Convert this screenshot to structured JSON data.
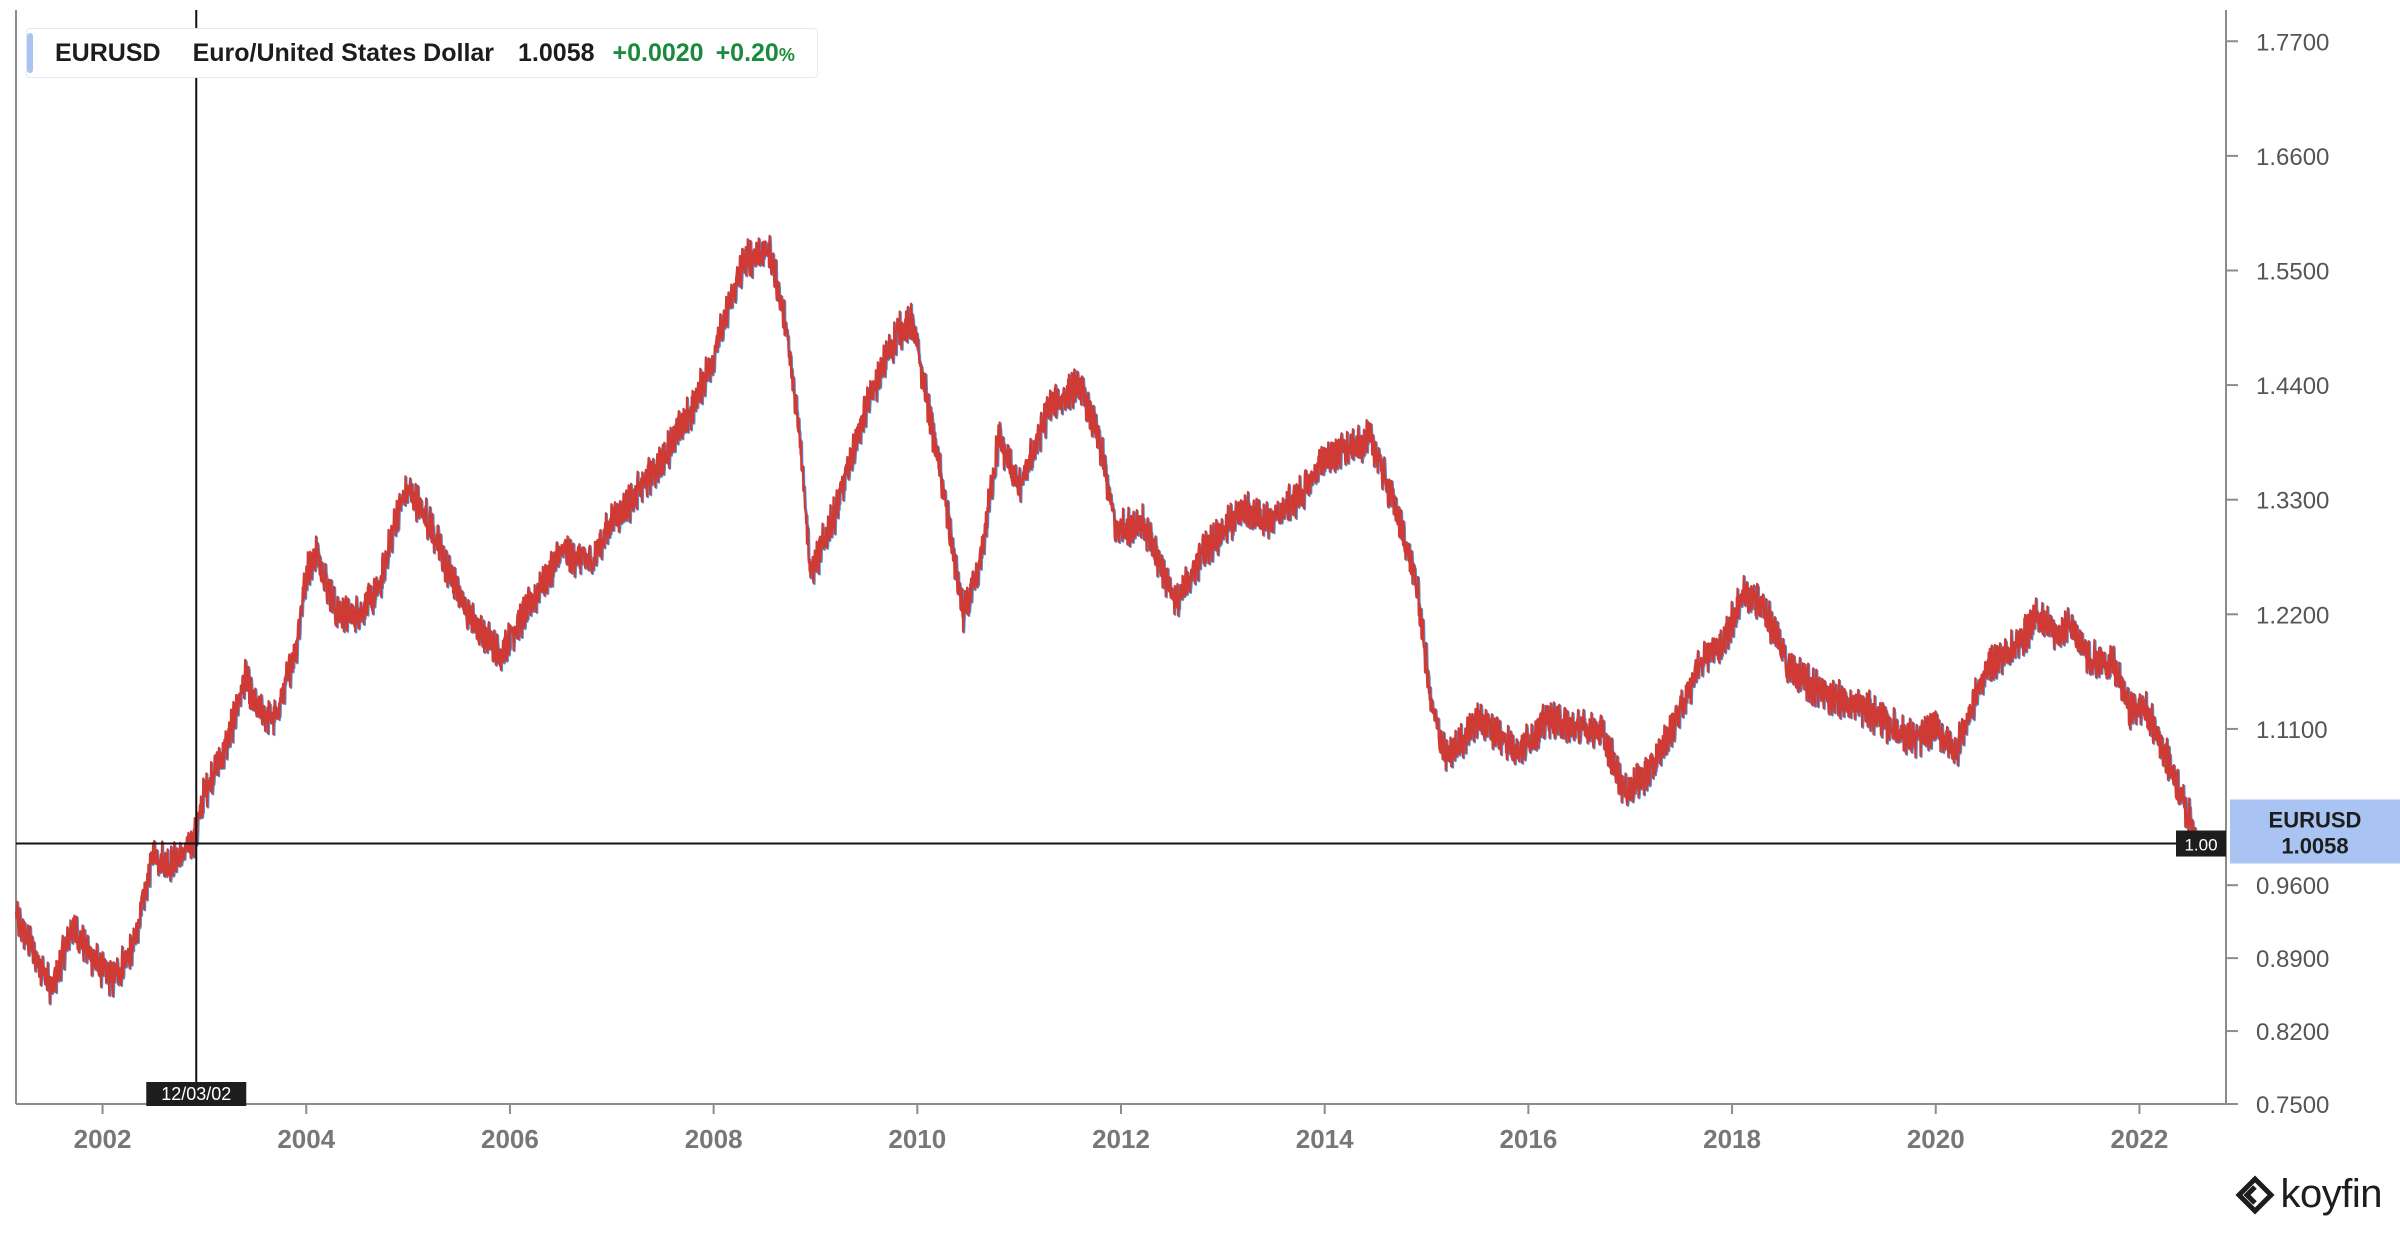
{
  "legend": {
    "symbol": "EURUSD",
    "name": "Euro/United States Dollar",
    "last": "1.0058",
    "change": "+0.0020",
    "change_pct": "+0.20",
    "pct_unit": "%"
  },
  "price_tag": {
    "symbol": "EURUSD",
    "value": "1.0058"
  },
  "crosshair": {
    "x_label": "12/03/02",
    "y_label": "1.00",
    "x_date": 2002.92,
    "y_value": 1.0
  },
  "brand": {
    "name": "koyfin"
  },
  "colors": {
    "line": "#d03a35",
    "line_highlight": "#4f8fd6",
    "tag_bg": "#a9c4f2",
    "positive": "#1a8a3c"
  },
  "chart_data": {
    "type": "line",
    "title": "",
    "xlabel": "",
    "ylabel": "",
    "xlim": [
      2001.15,
      2022.85
    ],
    "ylim": [
      0.75,
      1.8
    ],
    "x_ticks": [
      2002,
      2004,
      2006,
      2008,
      2010,
      2012,
      2014,
      2016,
      2018,
      2020,
      2022
    ],
    "x_tick_labels": [
      "2002",
      "2004",
      "2006",
      "2008",
      "2010",
      "2012",
      "2014",
      "2016",
      "2018",
      "2020",
      "2022"
    ],
    "y_ticks": [
      0.75,
      0.82,
      0.89,
      0.96,
      1.11,
      1.22,
      1.33,
      1.44,
      1.55,
      1.66,
      1.77
    ],
    "y_tick_labels": [
      "0.7500",
      "0.8200",
      "0.8900",
      "0.9600",
      "1.1100",
      "1.2200",
      "1.3300",
      "1.4400",
      "1.5500",
      "1.6600",
      "1.7700"
    ],
    "grid": false,
    "legend": "top-left",
    "series": [
      {
        "name": "EURUSD",
        "x": [
          2001.15,
          2001.3,
          2001.5,
          2001.7,
          2001.9,
          2002.1,
          2002.3,
          2002.5,
          2002.65,
          2002.8,
          2002.92,
          2003.0,
          2003.2,
          2003.4,
          2003.5,
          2003.7,
          2003.9,
          2004.0,
          2004.1,
          2004.3,
          2004.5,
          2004.7,
          2004.9,
          2005.0,
          2005.2,
          2005.4,
          2005.6,
          2005.9,
          2006.0,
          2006.2,
          2006.5,
          2006.8,
          2007.0,
          2007.2,
          2007.5,
          2007.8,
          2008.0,
          2008.3,
          2008.55,
          2008.7,
          2008.85,
          2008.95,
          2009.0,
          2009.2,
          2009.5,
          2009.8,
          2009.95,
          2010.2,
          2010.45,
          2010.6,
          2010.8,
          2011.0,
          2011.3,
          2011.6,
          2011.8,
          2011.95,
          2012.2,
          2012.55,
          2012.8,
          2013.0,
          2013.2,
          2013.5,
          2013.8,
          2014.0,
          2014.3,
          2014.45,
          2014.7,
          2014.9,
          2015.05,
          2015.2,
          2015.5,
          2015.9,
          2016.2,
          2016.5,
          2016.7,
          2016.95,
          2017.2,
          2017.5,
          2017.7,
          2017.9,
          2018.1,
          2018.3,
          2018.55,
          2018.8,
          2019.0,
          2019.3,
          2019.6,
          2019.8,
          2020.0,
          2020.2,
          2020.5,
          2020.8,
          2021.0,
          2021.2,
          2021.3,
          2021.5,
          2021.75,
          2021.9,
          2022.05,
          2022.2,
          2022.4,
          2022.55
        ],
        "y": [
          0.93,
          0.9,
          0.86,
          0.92,
          0.89,
          0.87,
          0.9,
          0.99,
          0.98,
          0.99,
          1.01,
          1.05,
          1.09,
          1.16,
          1.13,
          1.12,
          1.19,
          1.26,
          1.28,
          1.22,
          1.22,
          1.24,
          1.32,
          1.34,
          1.31,
          1.26,
          1.22,
          1.18,
          1.2,
          1.23,
          1.28,
          1.27,
          1.31,
          1.33,
          1.37,
          1.42,
          1.47,
          1.56,
          1.57,
          1.5,
          1.39,
          1.26,
          1.27,
          1.32,
          1.42,
          1.49,
          1.5,
          1.37,
          1.22,
          1.26,
          1.39,
          1.34,
          1.42,
          1.44,
          1.38,
          1.3,
          1.31,
          1.23,
          1.28,
          1.3,
          1.32,
          1.31,
          1.34,
          1.37,
          1.38,
          1.39,
          1.32,
          1.25,
          1.13,
          1.08,
          1.12,
          1.09,
          1.12,
          1.11,
          1.11,
          1.05,
          1.07,
          1.13,
          1.18,
          1.19,
          1.24,
          1.23,
          1.17,
          1.15,
          1.14,
          1.13,
          1.11,
          1.1,
          1.11,
          1.09,
          1.17,
          1.19,
          1.22,
          1.2,
          1.21,
          1.18,
          1.17,
          1.13,
          1.13,
          1.1,
          1.05,
          1.0058
        ]
      }
    ]
  }
}
